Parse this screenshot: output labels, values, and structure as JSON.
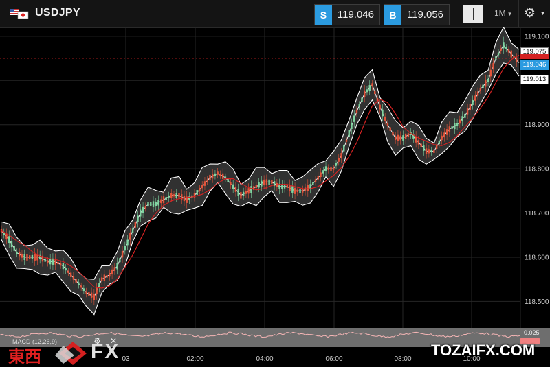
{
  "header": {
    "symbol": "USDJPY",
    "sell": {
      "tag": "S",
      "price": "119.046"
    },
    "buy": {
      "tag": "B",
      "price": "119.056"
    },
    "timeframe": "1M",
    "icons": {
      "flag": "us-jp-flag-icon",
      "crosshair": "crosshair-icon",
      "settings": "gear-icon"
    }
  },
  "price_flags": {
    "high": "119.075",
    "sell": "119.046",
    "low": "119.013"
  },
  "macd": {
    "label": "MACD (12,26,9)",
    "value": "0.025"
  },
  "watermark": {
    "logo_cn": "東西",
    "logo_fx": "FX",
    "site": "TOZAIFX.COM"
  },
  "colors": {
    "accent": "#2b9be0",
    "candle_bull": "#7fd4a0",
    "candle_bear": "#e4543a",
    "band": "#ffffff",
    "ma": "#d42323"
  },
  "chart_data": {
    "type": "line",
    "y_axis": [
      "119.100",
      "119.000",
      "118.900",
      "118.800",
      "118.700",
      "118.600",
      "118.500"
    ],
    "ylim": [
      118.44,
      119.12
    ],
    "x_ticks": [
      "03",
      "02:00",
      "04:00",
      "06:00",
      "08:00",
      "10:00"
    ],
    "series": [
      {
        "values": [
          118.66,
          118.64,
          118.61,
          118.6,
          118.6,
          118.6,
          118.59,
          118.59,
          118.58,
          118.56,
          118.54,
          118.52,
          118.51,
          118.55,
          118.56,
          118.58,
          118.62,
          118.66,
          118.7,
          118.72,
          118.72,
          118.73,
          118.74,
          118.74,
          118.73,
          118.74,
          118.76,
          118.78,
          118.79,
          118.78,
          118.76,
          118.74,
          118.75,
          118.76,
          118.77,
          118.77,
          118.76,
          118.76,
          118.75,
          118.75,
          118.76,
          118.78,
          118.8,
          118.8,
          118.83,
          118.88,
          118.93,
          118.97,
          118.99,
          118.94,
          118.9,
          118.87,
          118.87,
          118.88,
          118.86,
          118.84,
          118.84,
          118.87,
          118.89,
          118.9,
          118.92,
          118.95,
          118.98,
          119.0,
          119.05,
          119.08,
          119.06,
          119.04
        ]
      }
    ]
  }
}
